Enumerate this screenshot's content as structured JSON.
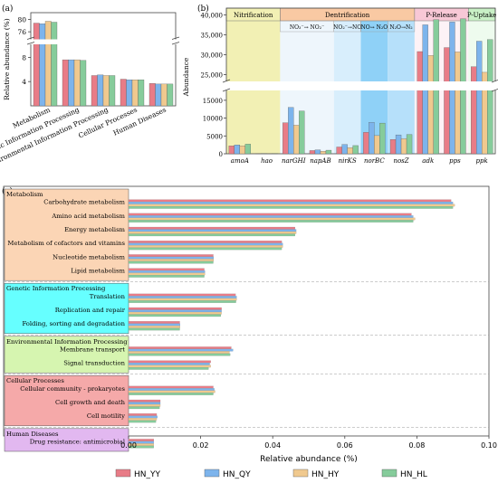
{
  "colors": {
    "HN_YY": "#e87c87",
    "HN_QY": "#7db4ec",
    "HN_HY": "#f0c98f",
    "HN_HL": "#86cc9b"
  },
  "series_names": [
    "HN_YY",
    "HN_QY",
    "HN_HY",
    "HN_HL"
  ],
  "chart_data": [
    {
      "panel": "(a)",
      "type": "bar",
      "ylabel": "Relative abundance (%)",
      "yticks": [
        "4",
        "8",
        "76",
        "80"
      ],
      "axis_break": [
        10,
        74
      ],
      "categories": [
        "Metabolism",
        "Genetic Information Processing",
        "Environmental Information Processing",
        "Cellular Processes",
        "Human Diseases"
      ],
      "series": [
        {
          "name": "HN_YY",
          "values": [
            78.8,
            7.6,
            5.0,
            4.4,
            3.7
          ]
        },
        {
          "name": "HN_QY",
          "values": [
            78.6,
            7.6,
            5.1,
            4.3,
            3.6
          ]
        },
        {
          "name": "HN_HY",
          "values": [
            79.4,
            7.6,
            5.0,
            4.3,
            3.6
          ]
        },
        {
          "name": "HN_HL",
          "values": [
            79.1,
            7.5,
            5.0,
            4.3,
            3.6
          ]
        }
      ]
    },
    {
      "panel": "(b)",
      "type": "bar",
      "ylabel": "Abundance",
      "yticks": [
        "0",
        "5000",
        "10000",
        "15000",
        "25,000",
        "30,000",
        "35,000",
        "40,000"
      ],
      "axis_break": [
        17000,
        24000
      ],
      "groups": [
        "Nitrification",
        "Dentrification",
        "P-Release",
        "P-Uptake"
      ],
      "subgroups": [
        "NO₃⁻→ NO₂⁻",
        "NO₂⁻→NO",
        "NO→ N₂O",
        "N₂O→N₂"
      ],
      "categories": [
        "amoA",
        "hao",
        "narGHI",
        "napAB",
        "nirKS",
        "norBC",
        "nosZ",
        "adk",
        "pps",
        "ppk"
      ],
      "series": [
        {
          "name": "HN_YY",
          "values": [
            2200,
            80,
            8700,
            900,
            1900,
            6000,
            4000,
            30800,
            31800,
            27000
          ]
        },
        {
          "name": "HN_QY",
          "values": [
            2500,
            100,
            13000,
            1100,
            2600,
            8800,
            5300,
            37500,
            38200,
            33400
          ]
        },
        {
          "name": "HN_HY",
          "values": [
            2200,
            80,
            8000,
            700,
            1700,
            5100,
            4200,
            29800,
            30700,
            25600
          ]
        },
        {
          "name": "HN_HL",
          "values": [
            2700,
            100,
            12000,
            1000,
            2300,
            8600,
            5400,
            38800,
            39000,
            33800
          ]
        }
      ]
    },
    {
      "panel": "(c)",
      "type": "bar",
      "orientation": "horizontal",
      "xlabel": "Relative abundance (%)",
      "xlim": [
        0,
        0.1
      ],
      "xticks": [
        "0.00",
        "0.02",
        "0.04",
        "0.06",
        "0.08",
        "0.10"
      ],
      "legend": "bottom",
      "groups": [
        {
          "name": "Metabolism",
          "color": "#fbd5b5",
          "items": [
            {
              "label": "Carbohydrate metabolism",
              "values": [
                0.0895,
                0.09,
                0.0905,
                0.09
              ]
            },
            {
              "label": "Amino acid metabolism",
              "values": [
                0.0785,
                0.079,
                0.0795,
                0.079
              ]
            },
            {
              "label": "Energy metabolism",
              "values": [
                0.0462,
                0.0465,
                0.0465,
                0.0462
              ]
            },
            {
              "label": "Metabolism of cofactors and vitamins",
              "values": [
                0.0425,
                0.0428,
                0.0428,
                0.0425
              ]
            },
            {
              "label": "Nucleotide metabolism",
              "values": [
                0.0235,
                0.0236,
                0.0236,
                0.0235
              ]
            },
            {
              "label": "Lipid metabolism",
              "values": [
                0.021,
                0.0212,
                0.0212,
                0.021
              ]
            }
          ]
        },
        {
          "name": "Genetic Information Processing",
          "color": "#66ffff",
          "items": [
            {
              "label": "Translation",
              "values": [
                0.0297,
                0.03,
                0.03,
                0.0298
              ]
            },
            {
              "label": "Replication and repair",
              "values": [
                0.0258,
                0.0258,
                0.0258,
                0.0256
              ]
            },
            {
              "label": "Folding, sorting and degradation",
              "values": [
                0.0142,
                0.0143,
                0.0143,
                0.0142
              ]
            }
          ]
        },
        {
          "name": "Environmental Information Processing",
          "color": "#d6f5b0",
          "items": [
            {
              "label": "Membrane transport",
              "values": [
                0.0285,
                0.029,
                0.028,
                0.0282
              ]
            },
            {
              "label": "Signal transduction",
              "values": [
                0.0228,
                0.0225,
                0.0228,
                0.0222
              ]
            }
          ]
        },
        {
          "name": "Cellular Processes",
          "color": "#f5a9a9",
          "items": [
            {
              "label": "Cellular community - prokaryotes",
              "values": [
                0.0235,
                0.0238,
                0.024,
                0.0235
              ]
            },
            {
              "label": "Cell growth and death",
              "values": [
                0.0088,
                0.0088,
                0.0088,
                0.0086
              ]
            },
            {
              "label": "Cell motility",
              "values": [
                0.0078,
                0.008,
                0.0078,
                0.0076
              ]
            }
          ]
        },
        {
          "name": "Human Diseases",
          "color": "#e2b8f0",
          "items": [
            {
              "label": "Drug resistance: antimicrobial",
              "values": [
                0.007,
                0.007,
                0.007,
                0.007
              ]
            }
          ]
        }
      ]
    }
  ]
}
